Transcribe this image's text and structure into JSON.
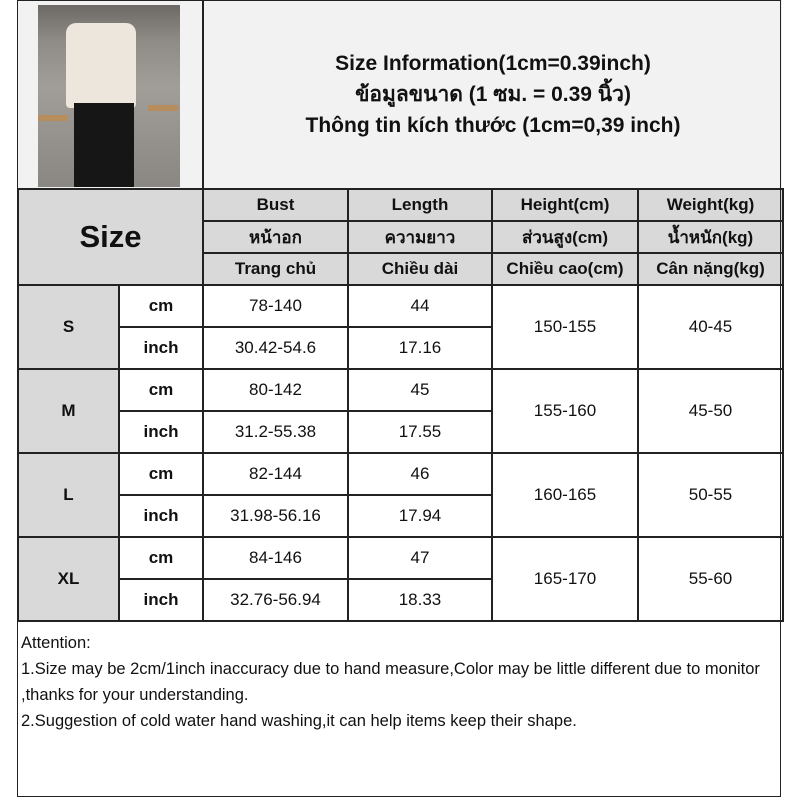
{
  "header": {
    "title_en": "Size Information(1cm=0.39inch)",
    "title_th": "ข้อมูลขนาด (1 ซม. = 0.39 นิ้ว)",
    "title_vi": "Thông tin kích thước (1cm=0,39 inch)"
  },
  "table": {
    "size_label": "Size",
    "columns": [
      {
        "en": "Bust",
        "th": "หน้าอก",
        "vi": "Trang chủ"
      },
      {
        "en": "Length",
        "th": "ความยาว",
        "vi": "Chiều dài"
      },
      {
        "en": "Height(cm)",
        "th": "ส่วนสูง(cm)",
        "vi": "Chiều cao(cm)"
      },
      {
        "en": "Weight(kg)",
        "th": "น้ำหนัก(kg)",
        "vi": "Cân nặng(kg)"
      }
    ],
    "rows": [
      {
        "size": "S",
        "cm_label": "cm",
        "inch_label": "inch",
        "bust_cm": "78-140",
        "length_cm": "44",
        "bust_inch": "30.42-54.6",
        "length_inch": "17.16",
        "height": "150-155",
        "weight": "40-45"
      },
      {
        "size": "M",
        "cm_label": "cm",
        "inch_label": "inch",
        "bust_cm": "80-142",
        "length_cm": "45",
        "bust_inch": "31.2-55.38",
        "length_inch": "17.55",
        "height": "155-160",
        "weight": "45-50"
      },
      {
        "size": "L",
        "cm_label": "cm",
        "inch_label": "inch",
        "bust_cm": "82-144",
        "length_cm": "46",
        "bust_inch": "31.98-56.16",
        "length_inch": "17.94",
        "height": "160-165",
        "weight": "50-55"
      },
      {
        "size": "XL",
        "cm_label": "cm",
        "inch_label": "inch",
        "bust_cm": "84-146",
        "length_cm": "47",
        "bust_inch": "32.76-56.94",
        "length_inch": "18.33",
        "height": "165-170",
        "weight": "55-60"
      }
    ]
  },
  "attention": {
    "title": "Attention:",
    "line1": "1.Size may be 2cm/1inch inaccuracy due to hand measure,Color may be little different due to monitor ,thanks for your understanding.",
    "line2": "2.Suggestion of cold water hand washing,it can help items keep their shape."
  }
}
